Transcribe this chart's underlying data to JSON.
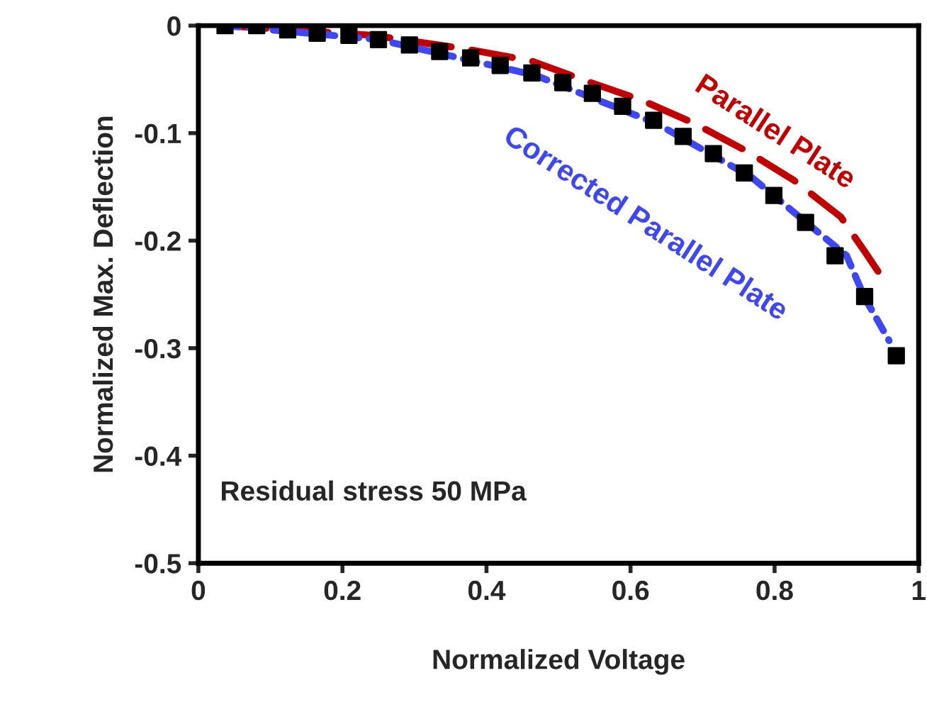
{
  "chart_data": {
    "type": "line",
    "xlabel": "Normalized Voltage",
    "ylabel": "Normalized Max. Deflection",
    "xlim": [
      0,
      1
    ],
    "ylim": [
      -0.5,
      0
    ],
    "xticks": [
      0,
      0.2,
      0.4,
      0.6,
      0.8,
      1
    ],
    "yticks": [
      -0.5,
      -0.4,
      -0.3,
      -0.2,
      -0.1,
      0
    ],
    "grid": false,
    "legend": false,
    "annotations": [
      "Residual stress 50 MPa"
    ],
    "series": [
      {
        "name": "Parallel Plate",
        "line_style": "dashed",
        "color": "#c00000",
        "x": [
          0.037,
          0.242,
          0.374,
          0.463,
          0.545,
          0.614,
          0.689,
          0.762,
          0.827,
          0.892,
          0.925,
          0.949
        ],
        "values": [
          0,
          -0.009,
          -0.022,
          -0.033,
          -0.053,
          -0.069,
          -0.091,
          -0.117,
          -0.144,
          -0.178,
          -0.21,
          -0.234
        ]
      },
      {
        "name": "Corrected Parallel Plate",
        "line_style": "dotted",
        "color": "#3f48f0",
        "x": [
          0.037,
          0.25,
          0.467,
          0.636,
          0.768,
          0.833,
          0.9,
          0.925,
          0.959
        ],
        "values": [
          0,
          -0.013,
          -0.046,
          -0.091,
          -0.141,
          -0.177,
          -0.214,
          -0.253,
          -0.293
        ]
      },
      {
        "type": "scatter",
        "marker": "square",
        "color": "#000000",
        "x": [
          0.037,
          0.081,
          0.124,
          0.165,
          0.209,
          0.25,
          0.293,
          0.335,
          0.378,
          0.419,
          0.463,
          0.506,
          0.547,
          0.589,
          0.632,
          0.673,
          0.715,
          0.758,
          0.799,
          0.843,
          0.884,
          0.925,
          0.969
        ],
        "values": [
          0,
          0,
          -0.004,
          -0.007,
          -0.009,
          -0.013,
          -0.018,
          -0.024,
          -0.03,
          -0.037,
          -0.044,
          -0.053,
          -0.063,
          -0.075,
          -0.088,
          -0.103,
          -0.119,
          -0.137,
          -0.158,
          -0.183,
          -0.214,
          -0.252,
          -0.307
        ]
      }
    ]
  }
}
